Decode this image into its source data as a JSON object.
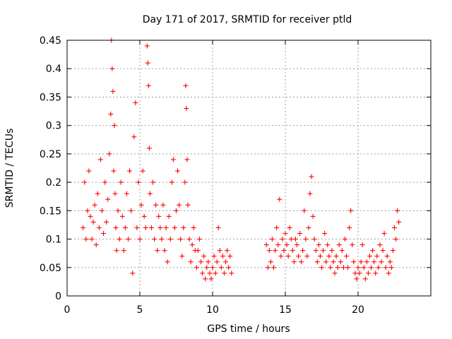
{
  "chart_data": {
    "type": "scatter",
    "title": "Day 171 of 2017, SRMTID for receiver ptld",
    "xlabel": "GPS time / hours",
    "ylabel": "SRMTID / TECUs",
    "xlim": [
      0,
      25
    ],
    "ylim": [
      0,
      0.45
    ],
    "xticks": [
      0,
      5,
      10,
      15,
      20
    ],
    "xtick_labels": [
      "0",
      "5",
      "10",
      "15",
      "20"
    ],
    "yticks": [
      0,
      0.05,
      0.1,
      0.15,
      0.2,
      0.25,
      0.3,
      0.35,
      0.4,
      0.45
    ],
    "ytick_labels": [
      "0",
      "0.05",
      "0.1",
      "0.15",
      "0.2",
      "0.25",
      "0.3",
      "0.35",
      "0.4",
      "0.45"
    ],
    "grid": true,
    "legend": "none",
    "series": [
      {
        "marker": "plus",
        "color": "#ff0000",
        "x": [
          1.1,
          1.2,
          1.3,
          1.4,
          1.5,
          1.6,
          1.7,
          1.8,
          1.9,
          2.0,
          2.1,
          2.2,
          2.3,
          2.4,
          2.5,
          2.6,
          2.7,
          2.8,
          2.9,
          3.0,
          3.05,
          3.1,
          3.15,
          3.2,
          3.25,
          3.3,
          3.35,
          3.4,
          3.5,
          3.6,
          3.7,
          3.8,
          3.9,
          4.0,
          4.1,
          4.2,
          4.3,
          4.4,
          4.5,
          4.6,
          4.7,
          4.8,
          4.9,
          5.0,
          5.1,
          5.2,
          5.3,
          5.4,
          5.5,
          5.55,
          5.6,
          5.65,
          5.7,
          5.8,
          5.9,
          6.0,
          6.1,
          6.2,
          6.3,
          6.4,
          6.5,
          6.6,
          6.7,
          6.8,
          6.9,
          7.0,
          7.1,
          7.2,
          7.3,
          7.4,
          7.5,
          7.6,
          7.7,
          7.8,
          7.9,
          8.0,
          8.1,
          8.15,
          8.2,
          8.25,
          8.3,
          8.4,
          8.5,
          8.6,
          8.7,
          8.8,
          8.9,
          9.0,
          9.1,
          9.2,
          9.3,
          9.4,
          9.5,
          9.6,
          9.7,
          9.8,
          9.9,
          10.0,
          10.1,
          10.2,
          10.3,
          10.4,
          10.5,
          10.6,
          10.7,
          10.8,
          10.9,
          11.0,
          11.1,
          11.2,
          11.3,
          13.7,
          13.8,
          13.9,
          14.0,
          14.1,
          14.2,
          14.3,
          14.4,
          14.5,
          14.6,
          14.7,
          14.8,
          14.9,
          15.0,
          15.1,
          15.2,
          15.3,
          15.4,
          15.5,
          15.6,
          15.7,
          15.8,
          15.9,
          16.0,
          16.1,
          16.2,
          16.3,
          16.4,
          16.5,
          16.6,
          16.7,
          16.8,
          16.9,
          17.0,
          17.1,
          17.2,
          17.3,
          17.4,
          17.5,
          17.6,
          17.7,
          17.8,
          17.9,
          18.0,
          18.1,
          18.2,
          18.3,
          18.4,
          18.5,
          18.6,
          18.7,
          18.8,
          18.9,
          19.0,
          19.1,
          19.2,
          19.3,
          19.4,
          19.5,
          19.6,
          19.7,
          19.8,
          19.9,
          20.0,
          20.1,
          20.2,
          20.3,
          20.4,
          20.5,
          20.6,
          20.7,
          20.8,
          20.9,
          21.0,
          21.1,
          21.2,
          21.3,
          21.4,
          21.5,
          21.6,
          21.7,
          21.8,
          21.9,
          22.0,
          22.1,
          22.2,
          22.3,
          22.4,
          22.5,
          22.6,
          22.7,
          22.8
        ],
        "y": [
          0.12,
          0.2,
          0.1,
          0.15,
          0.22,
          0.14,
          0.1,
          0.13,
          0.16,
          0.09,
          0.18,
          0.12,
          0.24,
          0.15,
          0.11,
          0.2,
          0.13,
          0.17,
          0.25,
          0.32,
          0.45,
          0.4,
          0.36,
          0.22,
          0.3,
          0.18,
          0.12,
          0.08,
          0.15,
          0.1,
          0.2,
          0.14,
          0.08,
          0.12,
          0.18,
          0.1,
          0.22,
          0.15,
          0.04,
          0.28,
          0.34,
          0.12,
          0.2,
          0.1,
          0.16,
          0.22,
          0.14,
          0.12,
          0.44,
          0.41,
          0.37,
          0.26,
          0.18,
          0.12,
          0.2,
          0.1,
          0.16,
          0.08,
          0.14,
          0.12,
          0.1,
          0.16,
          0.08,
          0.12,
          0.06,
          0.14,
          0.1,
          0.2,
          0.24,
          0.12,
          0.15,
          0.22,
          0.16,
          0.1,
          0.07,
          0.12,
          0.2,
          0.37,
          0.33,
          0.24,
          0.16,
          0.1,
          0.06,
          0.09,
          0.12,
          0.08,
          0.05,
          0.08,
          0.1,
          0.06,
          0.04,
          0.07,
          0.03,
          0.05,
          0.06,
          0.04,
          0.03,
          0.05,
          0.07,
          0.04,
          0.06,
          0.12,
          0.08,
          0.05,
          0.07,
          0.04,
          0.06,
          0.08,
          0.05,
          0.07,
          0.04,
          0.09,
          0.05,
          0.08,
          0.06,
          0.1,
          0.05,
          0.08,
          0.12,
          0.09,
          0.17,
          0.07,
          0.1,
          0.08,
          0.11,
          0.09,
          0.07,
          0.12,
          0.1,
          0.08,
          0.06,
          0.1,
          0.09,
          0.07,
          0.11,
          0.06,
          0.08,
          0.15,
          0.1,
          0.07,
          0.12,
          0.18,
          0.21,
          0.14,
          0.1,
          0.08,
          0.06,
          0.09,
          0.07,
          0.05,
          0.08,
          0.11,
          0.06,
          0.09,
          0.07,
          0.05,
          0.08,
          0.06,
          0.04,
          0.07,
          0.05,
          0.09,
          0.06,
          0.08,
          0.05,
          0.1,
          0.07,
          0.05,
          0.12,
          0.15,
          0.09,
          0.06,
          0.04,
          0.03,
          0.05,
          0.04,
          0.06,
          0.09,
          0.05,
          0.03,
          0.06,
          0.04,
          0.07,
          0.05,
          0.08,
          0.06,
          0.04,
          0.07,
          0.05,
          0.09,
          0.06,
          0.08,
          0.11,
          0.05,
          0.07,
          0.04,
          0.06,
          0.05,
          0.08,
          0.12,
          0.1,
          0.15,
          0.13
        ]
      }
    ]
  }
}
